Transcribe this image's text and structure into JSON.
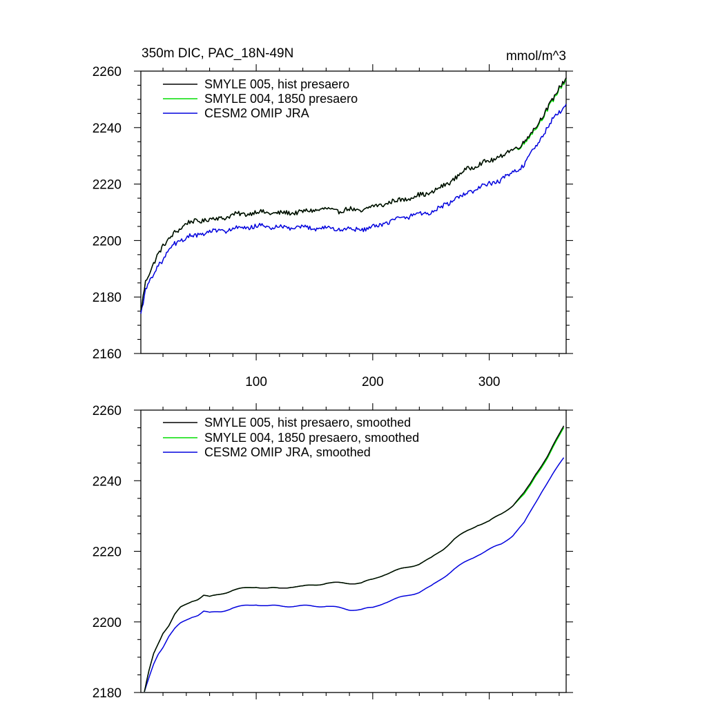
{
  "figure": {
    "title": "350m DIC, PAC_18N-49N",
    "units": "mmol/m^3"
  },
  "colors": {
    "smyle005": "#000000",
    "smyle004": "#00dd00",
    "omip": "#0000dd",
    "axes": "#000000"
  },
  "chart_data": [
    {
      "type": "line",
      "title": "350m DIC, PAC_18N-49N",
      "units_label": "mmol/m^3",
      "xlabel": "",
      "ylabel": "",
      "xlim": [
        1,
        366
      ],
      "ylim": [
        2160,
        2260
      ],
      "xticks": [
        100,
        200,
        300
      ],
      "xtick_labels": [
        "100",
        "200",
        "300"
      ],
      "yticks": [
        2160,
        2180,
        2200,
        2220,
        2240,
        2260
      ],
      "ytick_labels": [
        "2160",
        "2180",
        "2200",
        "2220",
        "2240",
        "2260"
      ],
      "legend_position": "top-left",
      "grid": false,
      "noise": true,
      "series": [
        {
          "name": "SMYLE 005, hist presaero",
          "color": "#000000",
          "x": [
            1,
            5,
            10,
            15,
            20,
            25,
            30,
            40,
            50,
            60,
            70,
            80,
            90,
            100,
            110,
            120,
            130,
            140,
            150,
            160,
            170,
            180,
            190,
            200,
            210,
            220,
            230,
            240,
            250,
            260,
            270,
            280,
            290,
            300,
            310,
            320,
            330,
            340,
            345,
            350,
            355,
            360,
            366
          ],
          "y": [
            2175,
            2185,
            2190,
            2195,
            2198,
            2200,
            2203,
            2206,
            2207,
            2207.5,
            2208,
            2209,
            2209.5,
            2210,
            2210,
            2209.5,
            2210,
            2210,
            2211,
            2211,
            2210.5,
            2211,
            2210.5,
            2212,
            2213,
            2214,
            2215,
            2216,
            2217,
            2219,
            2222,
            2225,
            2227,
            2228,
            2230,
            2232,
            2235,
            2240,
            2244,
            2247,
            2250,
            2254,
            2258
          ]
        },
        {
          "name": "SMYLE 004, 1850 presaero",
          "color": "#00dd00",
          "x": [
            1,
            5,
            10,
            15,
            20,
            25,
            30,
            40,
            50,
            60,
            70,
            80,
            90,
            100,
            110,
            120,
            130,
            140,
            150,
            160,
            170,
            180,
            190,
            200,
            210,
            220,
            230,
            240,
            250,
            260,
            270,
            280,
            290,
            300,
            310,
            320,
            330,
            340,
            345,
            350,
            355,
            360,
            366
          ],
          "y": [
            2175,
            2185,
            2190,
            2195,
            2198,
            2200,
            2203,
            2206,
            2207,
            2207.5,
            2208,
            2209,
            2209.5,
            2210,
            2210,
            2209.5,
            2210,
            2210,
            2211,
            2211,
            2210.5,
            2211,
            2210.5,
            2212,
            2213,
            2214,
            2215,
            2216,
            2217,
            2219,
            2222,
            2225,
            2227,
            2228,
            2230,
            2232,
            2234.5,
            2239.5,
            2243.5,
            2246.5,
            2249.5,
            2253.5,
            2257.5
          ]
        },
        {
          "name": "CESM2 OMIP JRA",
          "color": "#0000dd",
          "x": [
            1,
            5,
            10,
            15,
            20,
            25,
            30,
            40,
            50,
            60,
            70,
            80,
            90,
            100,
            110,
            120,
            130,
            140,
            150,
            160,
            170,
            180,
            190,
            200,
            210,
            220,
            230,
            240,
            250,
            260,
            270,
            280,
            290,
            300,
            310,
            320,
            330,
            340,
            345,
            350,
            355,
            360,
            366
          ],
          "y": [
            2174,
            2182,
            2187,
            2191,
            2193,
            2196,
            2199,
            2201,
            2202,
            2203,
            2203.5,
            2204,
            2204.5,
            2205,
            2205,
            2204.5,
            2204.5,
            2204.5,
            2204.5,
            2204.5,
            2204,
            2204,
            2204,
            2204.5,
            2206,
            2207.5,
            2208.5,
            2209.5,
            2210,
            2212,
            2214.5,
            2216.5,
            2218.5,
            2220,
            2221.5,
            2224,
            2227,
            2233,
            2237,
            2240,
            2243,
            2245.5,
            2248
          ]
        }
      ]
    },
    {
      "type": "line",
      "title": "",
      "xlabel": "",
      "ylabel": "",
      "xlim": [
        1,
        366
      ],
      "ylim": [
        2180,
        2260
      ],
      "xticks": [
        100,
        200,
        300
      ],
      "xtick_labels": [],
      "yticks": [
        2180,
        2200,
        2220,
        2240,
        2260
      ],
      "ytick_labels": [
        "2180",
        "2200",
        "2220",
        "2240",
        "2260"
      ],
      "legend_position": "top-left",
      "grid": false,
      "noise": false,
      "series": [
        {
          "name": "SMYLE 005, hist presaero, smoothed",
          "color": "#000000",
          "x": [
            4,
            8,
            12,
            16,
            20,
            25,
            30,
            35,
            40,
            45,
            50,
            55,
            60,
            70,
            80,
            90,
            100,
            110,
            120,
            130,
            140,
            150,
            160,
            170,
            180,
            190,
            200,
            210,
            220,
            230,
            240,
            250,
            260,
            270,
            280,
            290,
            300,
            310,
            320,
            330,
            335,
            340,
            345,
            350,
            355,
            360,
            364
          ],
          "y": [
            2180,
            2186,
            2191,
            2194,
            2197,
            2199,
            2202,
            2204,
            2205,
            2206,
            2206.5,
            2207.5,
            2207,
            2208,
            2209,
            2209.5,
            2210,
            2209.5,
            2209.5,
            2210,
            2210,
            2210.5,
            2211,
            2211,
            2211,
            2211,
            2212,
            2213.5,
            2214.5,
            2215.5,
            2216.5,
            2218,
            2220.5,
            2223.5,
            2225.5,
            2227.5,
            2228.5,
            2230.5,
            2233,
            2236.5,
            2239,
            2242,
            2244.5,
            2247,
            2250,
            2253,
            2255.5
          ]
        },
        {
          "name": "SMYLE 004, 1850 presaero, smoothed",
          "color": "#00dd00",
          "x": [
            4,
            8,
            12,
            16,
            20,
            25,
            30,
            35,
            40,
            45,
            50,
            55,
            60,
            70,
            80,
            90,
            100,
            110,
            120,
            130,
            140,
            150,
            160,
            170,
            180,
            190,
            200,
            210,
            220,
            230,
            240,
            250,
            260,
            270,
            280,
            290,
            300,
            310,
            320,
            330,
            335,
            340,
            345,
            350,
            355,
            360,
            364
          ],
          "y": [
            2180,
            2186,
            2191,
            2194,
            2197,
            2199,
            2202,
            2204,
            2205,
            2206,
            2206.5,
            2207.5,
            2207,
            2208,
            2209,
            2209.5,
            2210,
            2209.5,
            2209.5,
            2210,
            2210,
            2210.5,
            2211,
            2211,
            2211,
            2211,
            2212,
            2213.5,
            2214.5,
            2215.5,
            2216.5,
            2218,
            2220.5,
            2223.5,
            2225.5,
            2227.5,
            2228.5,
            2230.5,
            2233,
            2236,
            2238.5,
            2241.5,
            2244,
            2246.5,
            2249.5,
            2252.5,
            2255
          ]
        },
        {
          "name": "CESM2 OMIP JRA, smoothed",
          "color": "#0000dd",
          "x": [
            4,
            8,
            12,
            16,
            20,
            25,
            30,
            35,
            40,
            45,
            50,
            55,
            60,
            70,
            80,
            90,
            100,
            110,
            120,
            130,
            140,
            150,
            160,
            170,
            180,
            190,
            200,
            210,
            220,
            230,
            240,
            250,
            260,
            270,
            280,
            290,
            300,
            310,
            320,
            330,
            335,
            340,
            345,
            350,
            355,
            360,
            364
          ],
          "y": [
            2180,
            2184,
            2188,
            2191,
            2193,
            2196,
            2198,
            2199.5,
            2200.5,
            2201.5,
            2202,
            2203,
            2202.5,
            2203,
            2204,
            2204.5,
            2205,
            2204.5,
            2204.5,
            2204.5,
            2204.5,
            2204.5,
            2204.5,
            2204,
            2203.5,
            2203.5,
            2204,
            2205.5,
            2206.5,
            2207.5,
            2208.5,
            2210,
            2212.5,
            2215,
            2217,
            2219,
            2220.5,
            2222,
            2224.5,
            2228,
            2231,
            2234,
            2237,
            2239.5,
            2242,
            2244.5,
            2246.5
          ]
        }
      ]
    }
  ]
}
